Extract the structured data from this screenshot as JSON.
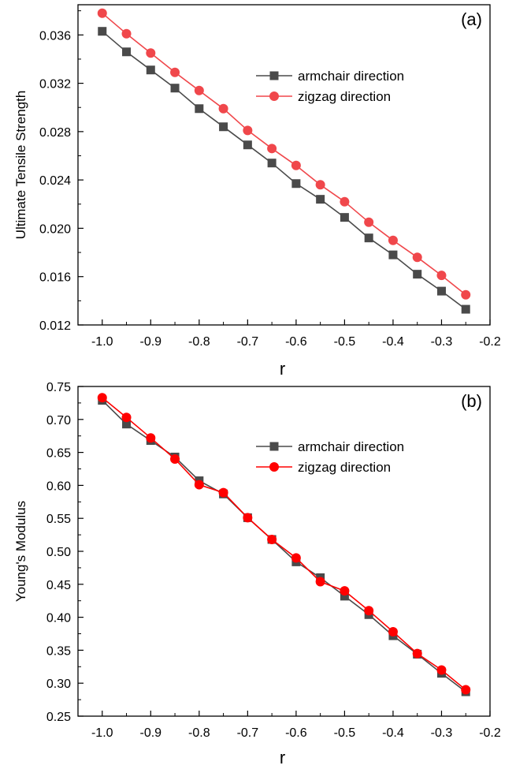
{
  "chart_data": [
    {
      "type": "line",
      "panel_label": "(a)",
      "xlabel": "r",
      "ylabel": "Ultimate Tensile Strength",
      "xlim": [
        -1.05,
        -0.2
      ],
      "ylim": [
        0.012,
        0.0385
      ],
      "x_ticks": [
        -1.0,
        -0.9,
        -0.8,
        -0.7,
        -0.6,
        -0.5,
        -0.4,
        -0.3,
        -0.2
      ],
      "x_tick_labels": [
        "-1.0",
        "-0.9",
        "-0.8",
        "-0.7",
        "-0.6",
        "-0.5",
        "-0.4",
        "-0.3",
        "-0.2"
      ],
      "y_ticks": [
        0.012,
        0.016,
        0.02,
        0.024,
        0.028,
        0.032,
        0.036
      ],
      "y_tick_labels": [
        "0.012",
        "0.016",
        "0.020",
        "0.024",
        "0.028",
        "0.032",
        "0.036"
      ],
      "grid": false,
      "legend_position": "upper-center",
      "x": [
        -1.0,
        -0.95,
        -0.9,
        -0.85,
        -0.8,
        -0.75,
        -0.7,
        -0.65,
        -0.6,
        -0.55,
        -0.5,
        -0.45,
        -0.4,
        -0.35,
        -0.3,
        -0.25
      ],
      "series": [
        {
          "name": "armchair direction",
          "color": "#4a4a4a",
          "marker": "square",
          "values": [
            0.0363,
            0.0346,
            0.0331,
            0.0316,
            0.0299,
            0.0284,
            0.0269,
            0.0254,
            0.0237,
            0.0224,
            0.0209,
            0.0192,
            0.0178,
            0.0162,
            0.0148,
            0.0133
          ]
        },
        {
          "name": "zigzag direction",
          "color": "#f0474b",
          "marker": "circle",
          "values": [
            0.0378,
            0.0361,
            0.0345,
            0.0329,
            0.0314,
            0.0299,
            0.0281,
            0.0266,
            0.0252,
            0.0236,
            0.0222,
            0.0205,
            0.019,
            0.0176,
            0.0161,
            0.0145
          ]
        }
      ]
    },
    {
      "type": "line",
      "panel_label": "(b)",
      "xlabel": "r",
      "ylabel": "Young's Modulus",
      "xlim": [
        -1.05,
        -0.2
      ],
      "ylim": [
        0.25,
        0.75
      ],
      "x_ticks": [
        -1.0,
        -0.9,
        -0.8,
        -0.7,
        -0.6,
        -0.5,
        -0.4,
        -0.3,
        -0.2
      ],
      "x_tick_labels": [
        "-1.0",
        "-0.9",
        "-0.8",
        "-0.7",
        "-0.6",
        "-0.5",
        "-0.4",
        "-0.3",
        "-0.2"
      ],
      "y_ticks": [
        0.25,
        0.3,
        0.35,
        0.4,
        0.45,
        0.5,
        0.55,
        0.6,
        0.65,
        0.7,
        0.75
      ],
      "y_tick_labels": [
        "0.25",
        "0.30",
        "0.35",
        "0.40",
        "0.45",
        "0.50",
        "0.55",
        "0.60",
        "0.65",
        "0.70",
        "0.75"
      ],
      "grid": false,
      "legend_position": "upper-center",
      "x": [
        -1.0,
        -0.95,
        -0.9,
        -0.85,
        -0.8,
        -0.75,
        -0.7,
        -0.65,
        -0.6,
        -0.55,
        -0.5,
        -0.45,
        -0.4,
        -0.35,
        -0.3,
        -0.25
      ],
      "series": [
        {
          "name": "armchair direction",
          "color": "#4a4a4a",
          "marker": "square",
          "values": [
            0.729,
            0.693,
            0.668,
            0.643,
            0.607,
            0.587,
            0.551,
            0.518,
            0.484,
            0.46,
            0.432,
            0.404,
            0.372,
            0.344,
            0.315,
            0.287
          ]
        },
        {
          "name": "zigzag direction",
          "color": "#ff0000",
          "marker": "circle",
          "values": [
            0.733,
            0.703,
            0.672,
            0.64,
            0.601,
            0.589,
            0.551,
            0.518,
            0.49,
            0.454,
            0.44,
            0.41,
            0.378,
            0.345,
            0.32,
            0.29
          ]
        }
      ]
    }
  ]
}
